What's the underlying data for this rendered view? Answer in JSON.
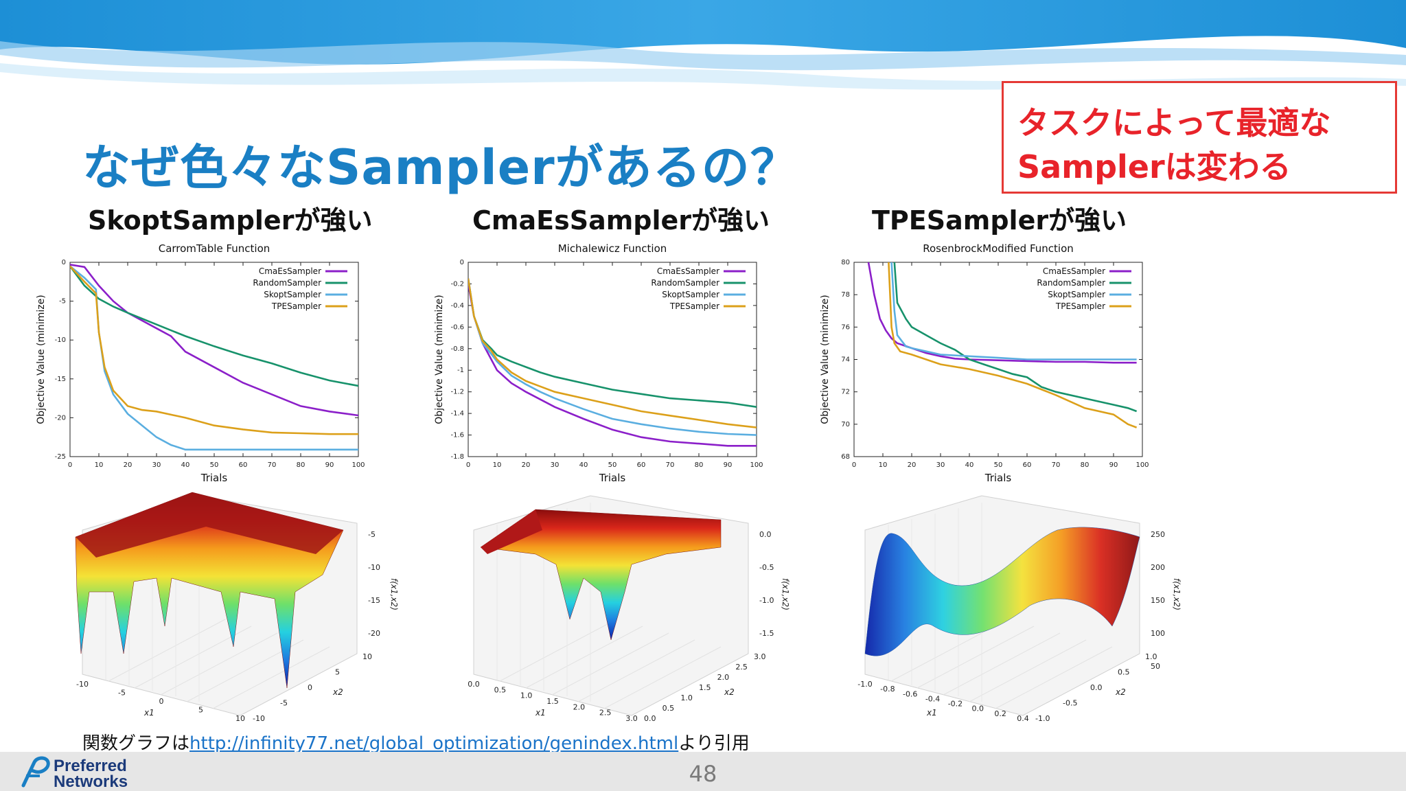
{
  "slide": {
    "title": "なぜ色々なSamplerがあるの？",
    "callout": {
      "line1": "タスクによって最適な",
      "line2": "Samplerは変わる"
    },
    "page_number": "48",
    "footnote": {
      "prefix": "関数グラフは",
      "link": "http://infinity77.net/global_optimization/genindex.html",
      "suffix": "より引用"
    },
    "logo": {
      "line1": "Preferred",
      "line2": "Networks"
    },
    "subheads": [
      "SkoptSamplerが強い",
      "CmaEsSamplerが強い",
      "TPESamplerが強い"
    ]
  },
  "colors": {
    "CmaEsSampler": "#8b1fc9",
    "RandomSampler": "#17926b",
    "SkoptSampler": "#5aaee0",
    "TPESampler": "#dca01a",
    "title": "#1a7fc4",
    "callout": "#e8232a"
  },
  "chart_data": [
    {
      "type": "line",
      "title": "CarromTable Function",
      "xlabel": "Trials",
      "ylabel": "Objective Value (minimize)",
      "xlim": [
        0,
        100
      ],
      "ylim": [
        -25,
        0
      ],
      "xticks": [
        0,
        10,
        20,
        30,
        40,
        50,
        60,
        70,
        80,
        90,
        100
      ],
      "yticks": [
        0,
        -5,
        -10,
        -15,
        -20,
        -25
      ],
      "legend": "top-right",
      "grid": false,
      "series": [
        {
          "name": "CmaEsSampler",
          "x": [
            0,
            5,
            10,
            15,
            20,
            25,
            30,
            35,
            40,
            50,
            60,
            70,
            80,
            90,
            100
          ],
          "y": [
            -0.3,
            -0.6,
            -3,
            -5,
            -6.5,
            -7.5,
            -8.5,
            -9.5,
            -11.5,
            -13.5,
            -15.5,
            -17,
            -18.5,
            -19.2,
            -19.7
          ]
        },
        {
          "name": "RandomSampler",
          "x": [
            0,
            5,
            10,
            15,
            20,
            30,
            40,
            50,
            60,
            70,
            80,
            90,
            100
          ],
          "y": [
            -0.5,
            -3,
            -4.7,
            -5.7,
            -6.5,
            -8,
            -9.5,
            -10.8,
            -12,
            -13,
            -14.2,
            -15.2,
            -15.9
          ]
        },
        {
          "name": "SkoptSampler",
          "x": [
            0,
            5,
            9,
            10,
            12,
            15,
            20,
            25,
            30,
            35,
            40,
            50,
            60,
            70,
            80,
            90,
            100
          ],
          "y": [
            -0.5,
            -2,
            -3.5,
            -9,
            -14,
            -17,
            -19.5,
            -21,
            -22.5,
            -23.5,
            -24.1,
            -24.1,
            -24.1,
            -24.1,
            -24.1,
            -24.1,
            -24.1
          ]
        },
        {
          "name": "TPESampler",
          "x": [
            0,
            5,
            9,
            10,
            12,
            15,
            20,
            25,
            30,
            40,
            50,
            60,
            70,
            80,
            90,
            100
          ],
          "y": [
            -0.5,
            -2.5,
            -4,
            -9,
            -13.5,
            -16.5,
            -18.5,
            -19,
            -19.2,
            -20,
            -21,
            -21.5,
            -21.9,
            -22,
            -22.1,
            -22.1
          ]
        }
      ]
    },
    {
      "type": "line",
      "title": "Michalewicz Function",
      "xlabel": "Trials",
      "ylabel": "Objective Value (minimize)",
      "xlim": [
        0,
        100
      ],
      "ylim": [
        -1.8,
        0
      ],
      "xticks": [
        0,
        10,
        20,
        30,
        40,
        50,
        60,
        70,
        80,
        90,
        100
      ],
      "yticks": [
        0,
        -0.2,
        -0.4,
        -0.6,
        -0.8,
        -1,
        -1.2,
        -1.4,
        -1.6,
        -1.8
      ],
      "legend": "top-right",
      "grid": false,
      "series": [
        {
          "name": "CmaEsSampler",
          "x": [
            0,
            2,
            5,
            8,
            10,
            15,
            20,
            25,
            30,
            40,
            50,
            60,
            70,
            80,
            90,
            100
          ],
          "y": [
            -0.2,
            -0.5,
            -0.75,
            -0.9,
            -1,
            -1.12,
            -1.2,
            -1.27,
            -1.34,
            -1.45,
            -1.55,
            -1.62,
            -1.66,
            -1.68,
            -1.7,
            -1.7
          ]
        },
        {
          "name": "RandomSampler",
          "x": [
            0,
            2,
            5,
            8,
            10,
            15,
            20,
            25,
            30,
            40,
            50,
            60,
            70,
            80,
            90,
            100
          ],
          "y": [
            -0.15,
            -0.5,
            -0.72,
            -0.8,
            -0.86,
            -0.92,
            -0.97,
            -1.02,
            -1.06,
            -1.12,
            -1.18,
            -1.22,
            -1.26,
            -1.28,
            -1.3,
            -1.34
          ]
        },
        {
          "name": "SkoptSampler",
          "x": [
            0,
            2,
            5,
            8,
            10,
            15,
            20,
            25,
            30,
            40,
            50,
            60,
            70,
            80,
            90,
            100
          ],
          "y": [
            -0.15,
            -0.5,
            -0.75,
            -0.85,
            -0.92,
            -1.05,
            -1.13,
            -1.2,
            -1.26,
            -1.36,
            -1.45,
            -1.5,
            -1.54,
            -1.57,
            -1.59,
            -1.6
          ]
        },
        {
          "name": "TPESampler",
          "x": [
            0,
            2,
            5,
            8,
            10,
            15,
            20,
            25,
            30,
            40,
            50,
            60,
            70,
            80,
            90,
            100
          ],
          "y": [
            -0.15,
            -0.5,
            -0.73,
            -0.82,
            -0.9,
            -1.02,
            -1.1,
            -1.15,
            -1.2,
            -1.26,
            -1.32,
            -1.38,
            -1.42,
            -1.46,
            -1.5,
            -1.53
          ]
        }
      ]
    },
    {
      "type": "line",
      "title": "RosenbrockModified Function",
      "xlabel": "Trials",
      "ylabel": "Objective Value (minimize)",
      "xlim": [
        0,
        100
      ],
      "ylim": [
        68,
        80
      ],
      "xticks": [
        0,
        10,
        20,
        30,
        40,
        50,
        60,
        70,
        80,
        90,
        100
      ],
      "yticks": [
        80,
        78,
        76,
        74,
        72,
        70,
        68
      ],
      "legend": "top-right",
      "grid": false,
      "series": [
        {
          "name": "CmaEsSampler",
          "x": [
            5,
            7,
            9,
            11,
            13,
            15,
            20,
            25,
            30,
            35,
            40,
            50,
            60,
            70,
            80,
            90,
            98
          ],
          "y": [
            80,
            78,
            76.5,
            75.8,
            75.3,
            75,
            74.7,
            74.4,
            74.2,
            74.05,
            74,
            73.95,
            73.9,
            73.85,
            73.85,
            73.8,
            73.8
          ]
        },
        {
          "name": "RandomSampler",
          "x": [
            14,
            15,
            18,
            20,
            25,
            30,
            35,
            40,
            45,
            50,
            55,
            60,
            65,
            70,
            80,
            90,
            95,
            98
          ],
          "y": [
            80,
            77.5,
            76.5,
            76,
            75.5,
            75,
            74.6,
            74,
            73.7,
            73.4,
            73.1,
            72.9,
            72.3,
            72,
            71.6,
            71.2,
            71,
            70.8
          ]
        },
        {
          "name": "SkoptSampler",
          "x": [
            13,
            14,
            15,
            18,
            20,
            25,
            30,
            40,
            50,
            60,
            70,
            80,
            90,
            98
          ],
          "y": [
            80,
            77,
            75.5,
            74.8,
            74.7,
            74.5,
            74.3,
            74.2,
            74.1,
            74,
            74,
            74,
            74,
            74
          ]
        },
        {
          "name": "TPESampler",
          "x": [
            12,
            13,
            14,
            16,
            20,
            25,
            30,
            40,
            50,
            60,
            70,
            80,
            90,
            95,
            98
          ],
          "y": [
            80,
            76,
            75,
            74.5,
            74.3,
            74,
            73.7,
            73.4,
            73,
            72.5,
            71.8,
            71,
            70.6,
            70,
            69.8
          ]
        }
      ]
    }
  ],
  "surfaces": [
    {
      "zticks": [
        "-5",
        "-10",
        "-15",
        "-20"
      ],
      "zlabel": "f(x1,x2)",
      "xlabel": "x1",
      "ylabel": "x2",
      "xticks": [
        "-10",
        "-5",
        "0",
        "5",
        "10"
      ],
      "yticks": [
        "-10",
        "-5",
        "0",
        "5",
        "10"
      ]
    },
    {
      "zticks": [
        "0.0",
        "-0.5",
        "-1.0",
        "-1.5"
      ],
      "zlabel": "f(x1,x2)",
      "xlabel": "x1",
      "ylabel": "x2",
      "xticks": [
        "0.0",
        "0.5",
        "1.0",
        "1.5",
        "2.0",
        "2.5",
        "3.0"
      ],
      "yticks": [
        "0.0",
        "0.5",
        "1.0",
        "1.5",
        "2.0",
        "2.5",
        "3.0"
      ]
    },
    {
      "zticks": [
        "250",
        "200",
        "150",
        "100",
        "50"
      ],
      "zlabel": "f(x1,x2)",
      "xlabel": "x1",
      "ylabel": "x2",
      "xticks": [
        "-1.0",
        "-0.8",
        "-0.6",
        "-0.4",
        "-0.2",
        "0.0",
        "0.2",
        "0.4"
      ],
      "yticks": [
        "-1.0",
        "-0.5",
        "0.0",
        "0.5",
        "1.0"
      ]
    }
  ]
}
